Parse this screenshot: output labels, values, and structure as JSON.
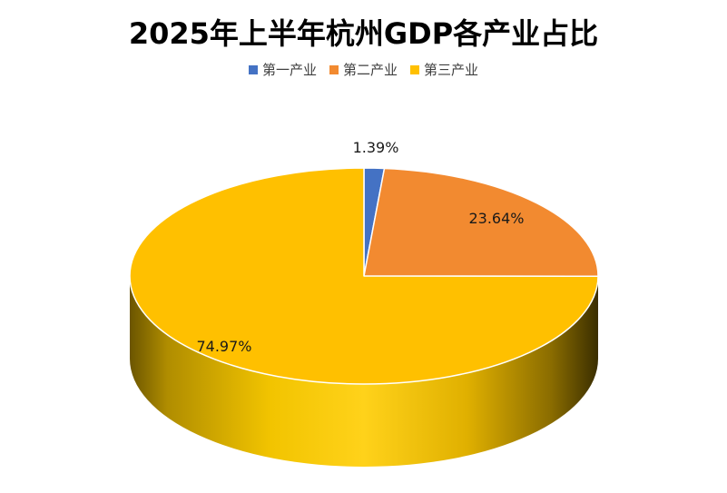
{
  "chart_data": {
    "type": "pie",
    "title": "2025年上半年杭州GDP各产业占比",
    "legend_position": "top",
    "style": "3d",
    "slices": [
      {
        "label": "第一产业",
        "value": 1.39,
        "display": "1.39%",
        "color": "#4472c4"
      },
      {
        "label": "第二产业",
        "value": 23.64,
        "display": "23.64%",
        "color": "#f28a30"
      },
      {
        "label": "第三产业",
        "value": 74.97,
        "display": "74.97%",
        "color": "#ffc000"
      }
    ]
  }
}
